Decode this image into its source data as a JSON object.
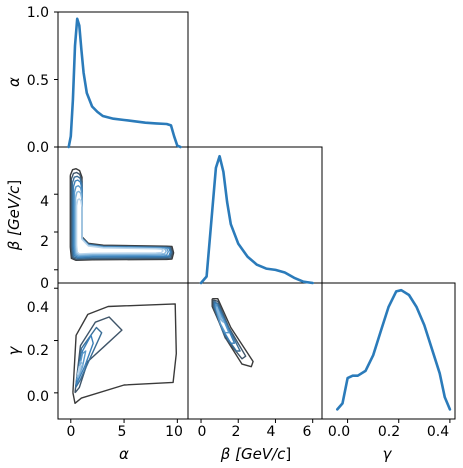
{
  "chart_data": {
    "type": "corner",
    "variables": [
      {
        "symbol": "α",
        "unit": ""
      },
      {
        "symbol": "β",
        "unit": "GeV/c"
      },
      {
        "symbol": "γ",
        "unit": ""
      }
    ],
    "labels": {
      "alpha_x": "α",
      "beta_x_pre": "β [GeV/",
      "beta_x_c": "c",
      "beta_x_post": "]",
      "gamma_x": "γ",
      "alpha_y": "α",
      "beta_y_pre": "β [GeV/",
      "beta_y_c": "c",
      "beta_y_post": "]",
      "gamma_y": "γ"
    },
    "ranges": {
      "alpha": [
        -1.2,
        11.0
      ],
      "beta": [
        -0.7,
        6.5
      ],
      "gamma": [
        -0.1,
        0.42
      ]
    },
    "ticks": {
      "alpha_x": [
        "0",
        "5",
        "10"
      ],
      "beta_x": [
        "0",
        "2",
        "4",
        "6"
      ],
      "gamma_x": [
        "0.0",
        "0.2",
        "0.4"
      ],
      "alpha_y": [
        "0.0",
        "0.5",
        "1.0"
      ],
      "beta_y": [
        "0",
        "2",
        "4"
      ],
      "gamma_y": [
        "0.0",
        "0.2",
        "0.4"
      ]
    },
    "marginal_alpha": {
      "ylim": [
        0,
        1.0
      ],
      "x": [
        -0.2,
        0.0,
        0.2,
        0.4,
        0.6,
        0.8,
        1.0,
        1.2,
        1.5,
        2.0,
        2.5,
        3.0,
        4.0,
        5.0,
        6.0,
        7.0,
        8.0,
        9.0,
        9.4,
        9.7,
        10.0,
        10.3
      ],
      "y": [
        0.0,
        0.08,
        0.35,
        0.75,
        0.95,
        0.9,
        0.72,
        0.55,
        0.4,
        0.3,
        0.26,
        0.23,
        0.21,
        0.2,
        0.19,
        0.18,
        0.175,
        0.17,
        0.16,
        0.08,
        0.01,
        0.0
      ]
    },
    "marginal_beta": {
      "x": [
        0.0,
        0.3,
        0.6,
        0.8,
        1.0,
        1.2,
        1.4,
        1.6,
        2.0,
        2.5,
        3.0,
        3.5,
        4.0,
        4.5,
        5.0,
        5.5,
        6.0
      ],
      "y": [
        0.0,
        0.05,
        0.55,
        0.88,
        0.97,
        0.85,
        0.62,
        0.45,
        0.3,
        0.2,
        0.14,
        0.11,
        0.1,
        0.08,
        0.04,
        0.01,
        0.0
      ]
    },
    "marginal_gamma": {
      "x": [
        -0.04,
        -0.02,
        0.0,
        0.02,
        0.04,
        0.07,
        0.1,
        0.13,
        0.16,
        0.19,
        0.21,
        0.24,
        0.27,
        0.3,
        0.33,
        0.36,
        0.38,
        0.4
      ],
      "y": [
        0.0,
        0.05,
        0.26,
        0.28,
        0.28,
        0.32,
        0.45,
        0.65,
        0.85,
        0.98,
        0.99,
        0.95,
        0.85,
        0.7,
        0.5,
        0.3,
        0.1,
        0.0
      ]
    },
    "contour_colors": [
      "#3a3a3a",
      "#3f5569",
      "#3a6e97",
      "#3b80b9",
      "#5a99cb",
      "#86b6db",
      "#b9d5ec"
    ],
    "contours_beta_alpha": [
      {
        "cx": [
          0.5,
          9.5
        ],
        "cy": [
          0.9,
          5.2
        ],
        "w": 0.55,
        "t": 0.35
      },
      {
        "cx": [
          0.55,
          9.4
        ],
        "cy": [
          0.9,
          5.0
        ],
        "w": 0.5,
        "t": 0.31
      },
      {
        "cx": [
          0.6,
          9.3
        ],
        "cy": [
          0.92,
          4.8
        ],
        "w": 0.45,
        "t": 0.27
      },
      {
        "cx": [
          0.65,
          9.2
        ],
        "cy": [
          0.94,
          4.6
        ],
        "w": 0.4,
        "t": 0.23
      },
      {
        "cx": [
          0.7,
          9.0
        ],
        "cy": [
          0.96,
          4.3
        ],
        "w": 0.35,
        "t": 0.19
      },
      {
        "cx": [
          0.75,
          8.8
        ],
        "cy": [
          0.98,
          4.0
        ],
        "w": 0.3,
        "t": 0.15
      },
      {
        "cx": [
          0.8,
          8.5
        ],
        "cy": [
          1.0,
          3.6
        ],
        "w": 0.25,
        "t": 0.11
      }
    ],
    "contours_gamma_alpha": [
      [
        [
          0.2,
          0.0
        ],
        [
          0.5,
          0.22
        ],
        [
          1.6,
          0.3
        ],
        [
          3.5,
          0.33
        ],
        [
          9.8,
          0.34
        ],
        [
          9.9,
          0.15
        ],
        [
          9.6,
          0.04
        ],
        [
          5.0,
          0.03
        ],
        [
          1.0,
          -0.02
        ],
        [
          0.4,
          -0.04
        ],
        [
          0.2,
          0.0
        ]
      ],
      [
        [
          0.4,
          0.0
        ],
        [
          0.9,
          0.18
        ],
        [
          2.3,
          0.27
        ],
        [
          3.6,
          0.29
        ],
        [
          4.8,
          0.24
        ],
        [
          3.2,
          0.18
        ],
        [
          1.6,
          0.12
        ],
        [
          0.8,
          0.02
        ],
        [
          0.4,
          0.0
        ]
      ],
      [
        [
          0.45,
          0.02
        ],
        [
          1.0,
          0.17
        ],
        [
          2.4,
          0.25
        ],
        [
          2.9,
          0.23
        ],
        [
          1.9,
          0.14
        ],
        [
          0.9,
          0.05
        ],
        [
          0.45,
          0.02
        ]
      ],
      [
        [
          0.5,
          0.03
        ],
        [
          1.1,
          0.16
        ],
        [
          1.9,
          0.22
        ],
        [
          2.1,
          0.19
        ],
        [
          1.3,
          0.1
        ],
        [
          0.6,
          0.04
        ],
        [
          0.5,
          0.03
        ]
      ],
      [
        [
          0.55,
          0.05
        ],
        [
          1.1,
          0.15
        ],
        [
          1.4,
          0.16
        ],
        [
          1.1,
          0.1
        ],
        [
          0.6,
          0.05
        ],
        [
          0.55,
          0.05
        ]
      ],
      [
        [
          0.6,
          0.06
        ],
        [
          0.9,
          0.12
        ],
        [
          1.1,
          0.11
        ],
        [
          0.7,
          0.06
        ],
        [
          0.6,
          0.06
        ]
      ],
      [
        [
          0.65,
          0.07
        ],
        [
          0.8,
          0.1
        ],
        [
          0.85,
          0.09
        ],
        [
          0.68,
          0.07
        ],
        [
          0.65,
          0.07
        ]
      ]
    ],
    "contours_gamma_beta": [
      [
        [
          0.6,
          0.36
        ],
        [
          0.9,
          0.36
        ],
        [
          1.6,
          0.25
        ],
        [
          2.8,
          0.12
        ],
        [
          2.7,
          0.1
        ],
        [
          2.2,
          0.11
        ],
        [
          1.4,
          0.2
        ],
        [
          0.6,
          0.33
        ],
        [
          0.6,
          0.36
        ]
      ],
      [
        [
          0.65,
          0.355
        ],
        [
          0.9,
          0.35
        ],
        [
          1.5,
          0.25
        ],
        [
          2.4,
          0.14
        ],
        [
          2.2,
          0.13
        ],
        [
          1.3,
          0.21
        ],
        [
          0.65,
          0.33
        ],
        [
          0.65,
          0.355
        ]
      ],
      [
        [
          0.7,
          0.35
        ],
        [
          0.9,
          0.34
        ],
        [
          1.4,
          0.26
        ],
        [
          2.1,
          0.16
        ],
        [
          1.9,
          0.16
        ],
        [
          1.2,
          0.23
        ],
        [
          0.7,
          0.33
        ],
        [
          0.7,
          0.35
        ]
      ],
      [
        [
          0.75,
          0.345
        ],
        [
          0.9,
          0.33
        ],
        [
          1.3,
          0.27
        ],
        [
          1.8,
          0.19
        ],
        [
          1.6,
          0.19
        ],
        [
          1.1,
          0.25
        ],
        [
          0.75,
          0.33
        ],
        [
          0.75,
          0.345
        ]
      ],
      [
        [
          0.8,
          0.34
        ],
        [
          0.9,
          0.32
        ],
        [
          1.2,
          0.28
        ],
        [
          1.5,
          0.23
        ],
        [
          1.3,
          0.23
        ],
        [
          1.0,
          0.27
        ],
        [
          0.8,
          0.33
        ],
        [
          0.8,
          0.34
        ]
      ],
      [
        [
          0.85,
          0.33
        ],
        [
          0.95,
          0.31
        ],
        [
          1.1,
          0.28
        ],
        [
          1.2,
          0.27
        ],
        [
          1.05,
          0.28
        ],
        [
          0.85,
          0.32
        ],
        [
          0.85,
          0.33
        ]
      ]
    ]
  }
}
